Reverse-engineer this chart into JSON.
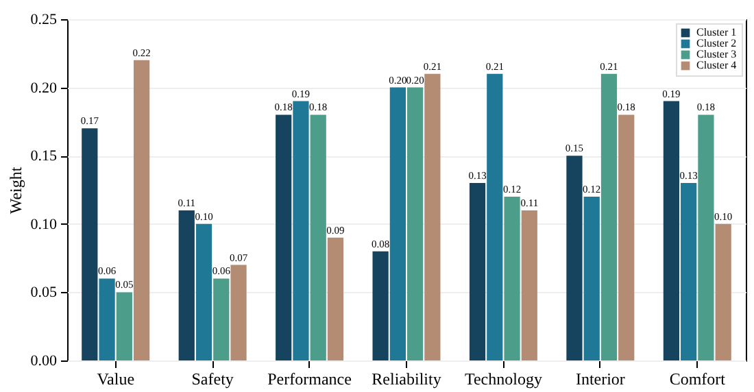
{
  "chart_data": {
    "type": "bar",
    "ylabel": "Weight",
    "categories": [
      "Value",
      "Safety",
      "Performance",
      "Reliability",
      "Technology",
      "Interior",
      "Comfort"
    ],
    "series": [
      {
        "name": "Cluster 1",
        "color": "#16445e",
        "values": [
          0.17,
          0.11,
          0.18,
          0.08,
          0.13,
          0.15,
          0.19
        ],
        "value_labels": [
          "0.17",
          "0.11",
          "0.18",
          "0.08",
          "0.13",
          "0.15",
          "0.19"
        ]
      },
      {
        "name": "Cluster 2",
        "color": "#1e7896",
        "values": [
          0.06,
          0.1,
          0.19,
          0.2,
          0.21,
          0.12,
          0.13
        ],
        "value_labels": [
          "0.06",
          "0.10",
          "0.19",
          "0.20",
          "0.21",
          "0.12",
          "0.13"
        ]
      },
      {
        "name": "Cluster 3",
        "color": "#4c9e8b",
        "values": [
          0.05,
          0.06,
          0.18,
          0.2,
          0.12,
          0.21,
          0.18
        ],
        "value_labels": [
          "0.05",
          "0.06",
          "0.18",
          "0.20",
          "0.12",
          "0.21",
          "0.18"
        ]
      },
      {
        "name": "Cluster 4",
        "color": "#b48c74",
        "values": [
          0.22,
          0.07,
          0.09,
          0.21,
          0.11,
          0.18,
          0.1
        ],
        "value_labels": [
          "0.22",
          "0.07",
          "0.09",
          "0.21",
          "0.11",
          "0.18",
          "0.10"
        ]
      }
    ],
    "ylim": [
      0,
      0.25
    ],
    "yticks": [
      {
        "value": 0,
        "label": "0.00"
      },
      {
        "value": 0.05,
        "label": "0.05"
      },
      {
        "value": 0.1,
        "label": "0.10"
      },
      {
        "value": 0.15,
        "label": "0.15"
      },
      {
        "value": 0.2,
        "label": "0.20"
      },
      {
        "value": 0.25,
        "label": "0.25"
      }
    ],
    "grid": "y",
    "legend": "top right"
  }
}
